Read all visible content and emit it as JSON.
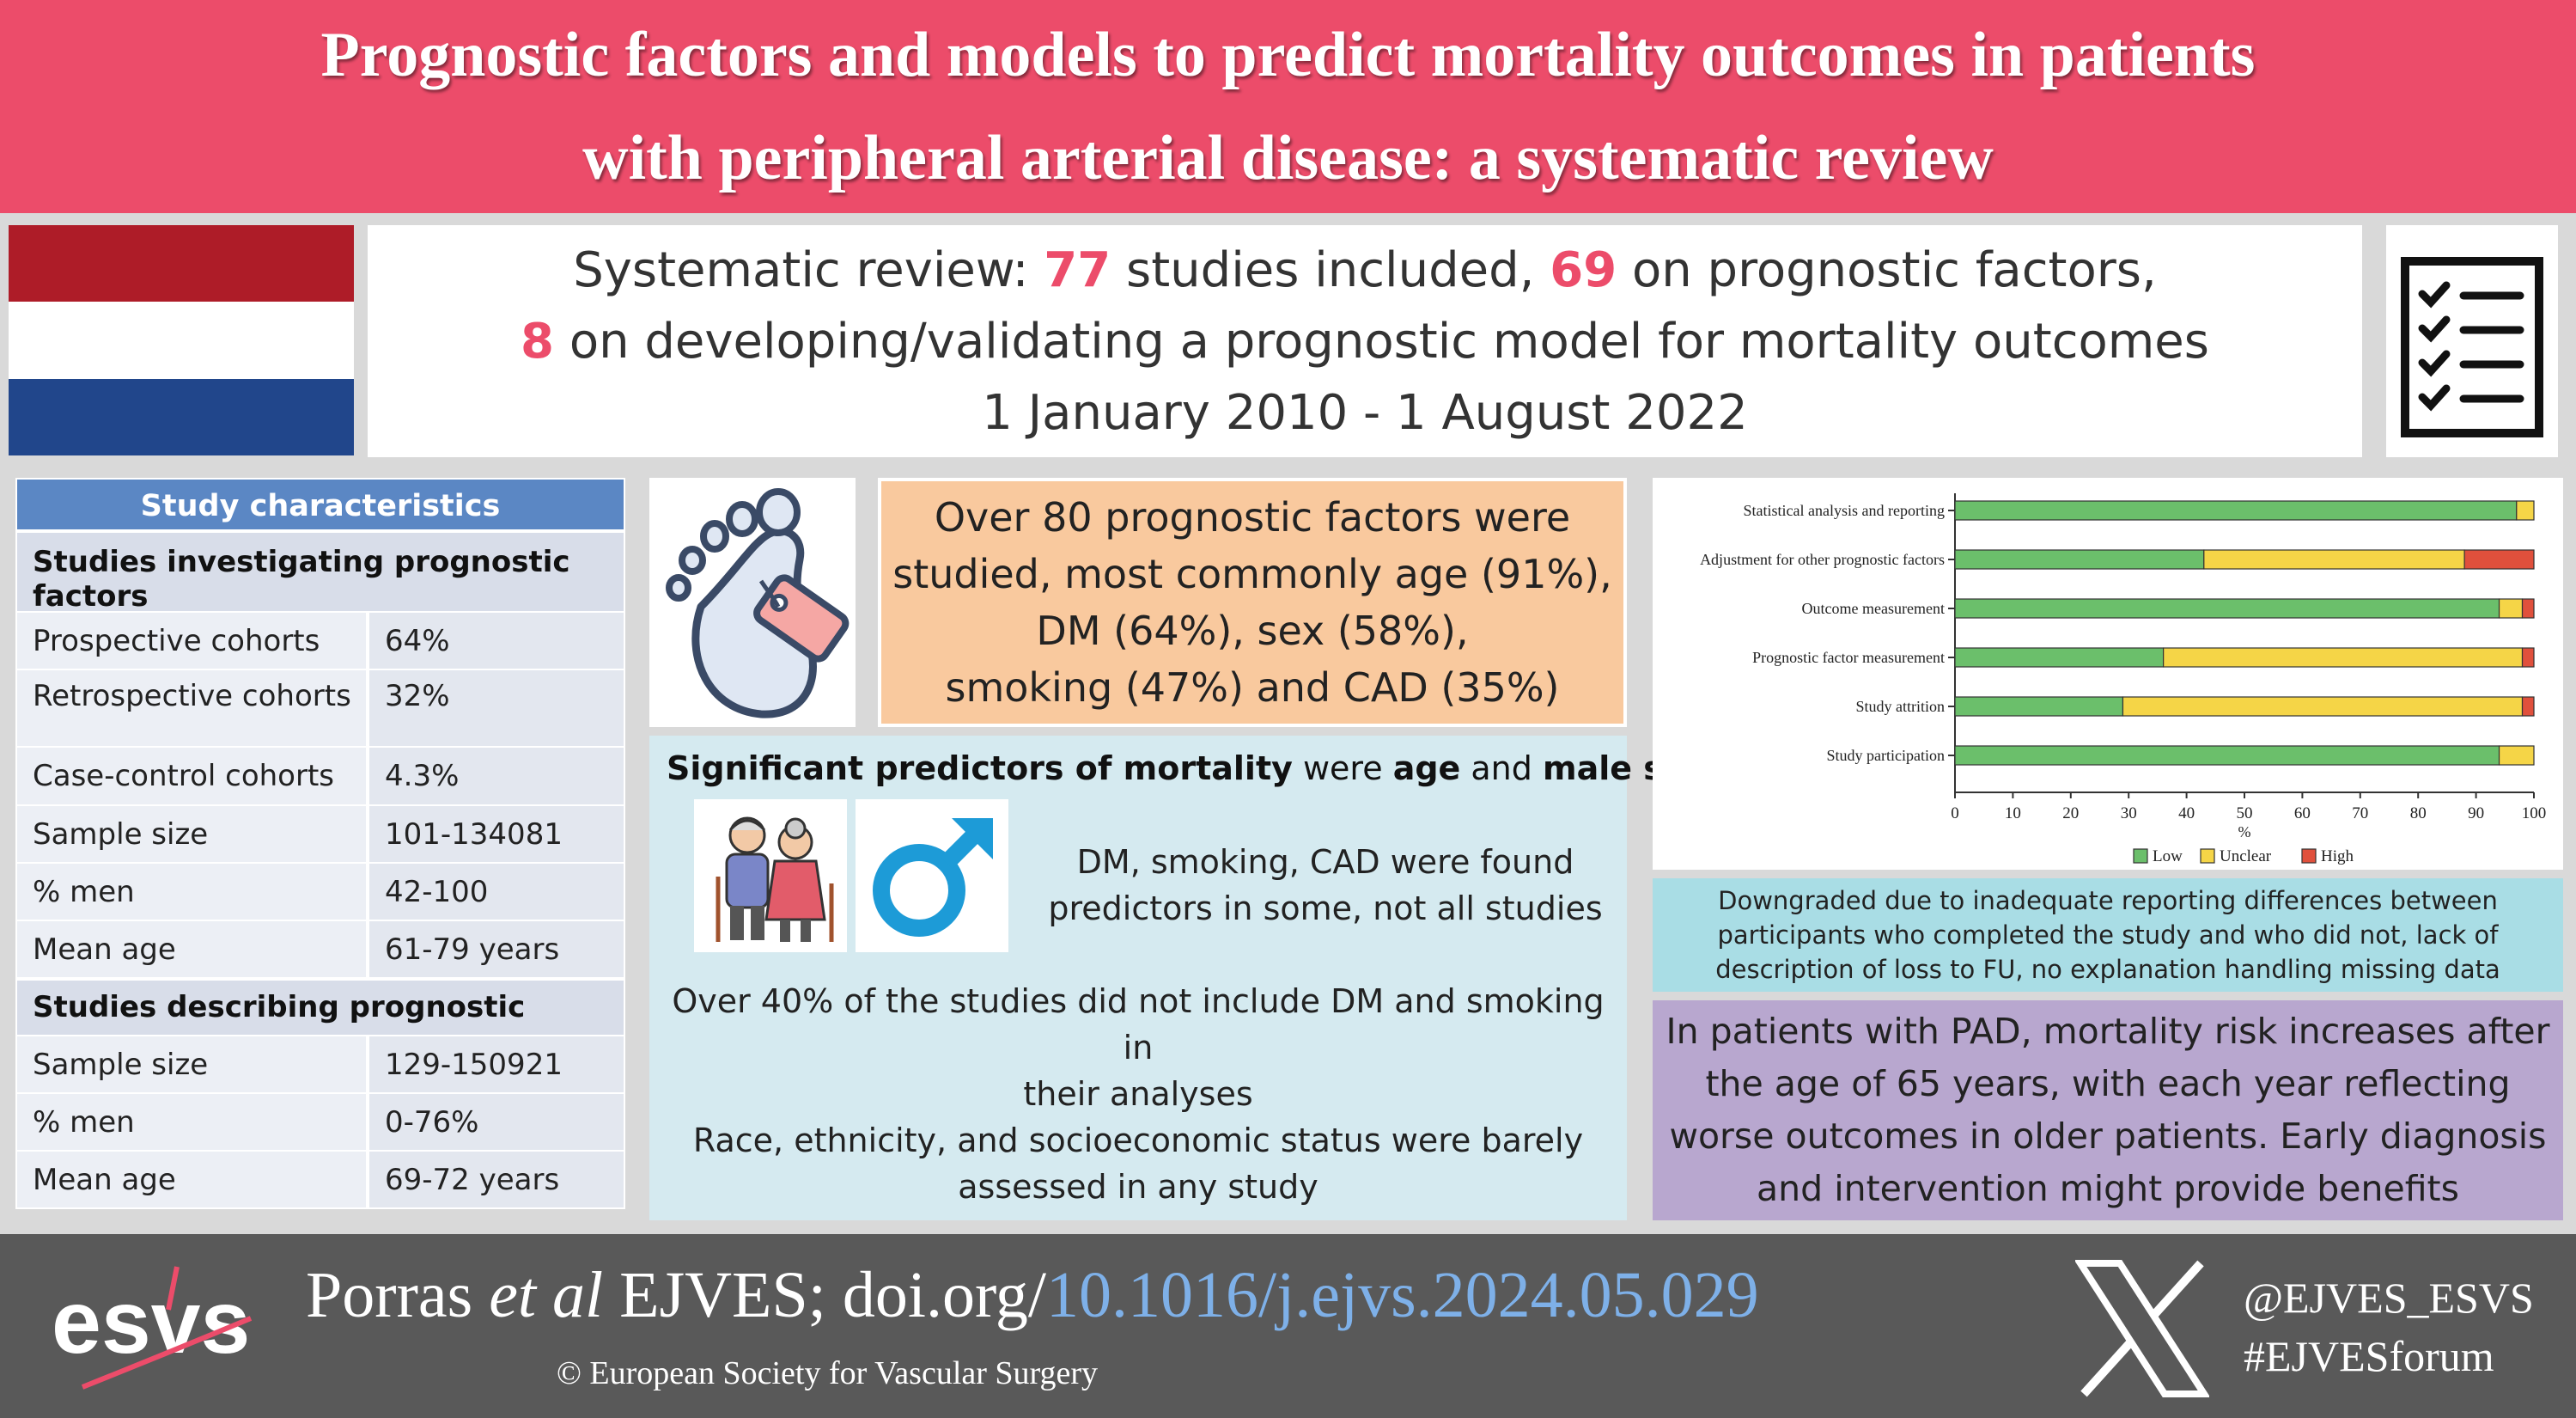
{
  "header": {
    "title_line1": "Prognostic factors and models to predict mortality outcomes in patients",
    "title_line2": "with peripheral arterial disease: a systematic review"
  },
  "flag": {
    "colors": [
      "#ae1c28",
      "#ffffff",
      "#21468b"
    ]
  },
  "summary": {
    "l1_a": "Systematic review: ",
    "l1_n1": "77",
    "l1_b": " studies included, ",
    "l1_n2": "69",
    "l1_c": " on prognostic factors,",
    "l2_n": "8",
    "l2_a": " on developing/validating a prognostic model for mortality outcomes",
    "l3": "1 January 2010 - 1 August 2022",
    "icon": "checklist-icon"
  },
  "characteristics": {
    "title": "Study characteristics",
    "section1": "Studies investigating prognostic factors",
    "rows1": [
      [
        "Prospective cohorts",
        "64%"
      ],
      [
        "Retrospective cohorts",
        "32%"
      ],
      [
        "Case-control cohorts",
        "4.3%"
      ],
      [
        "Sample size",
        "101-134081"
      ],
      [
        "% men",
        "42-100"
      ],
      [
        "Mean age",
        "61-79 years"
      ]
    ],
    "section2": "Studies describing prognostic models",
    "rows2": [
      [
        "Sample size",
        "129-150921"
      ],
      [
        "% men",
        "0-76%"
      ],
      [
        "Mean age",
        "69-72 years"
      ]
    ]
  },
  "factors": {
    "icon": "foot-tag-icon",
    "l1": "Over 80 prognostic factors were",
    "l2": "studied, most commonly age (91%),",
    "l3": "DM (64%), sex (58%),",
    "l4": "smoking (47%) and CAD (35%)"
  },
  "predictors": {
    "h_b1": "Significant predictors of mortality",
    "h_t1": " were ",
    "h_b2": "age",
    "h_t2": " and ",
    "h_b3": "male sex",
    "icon_elderly": "elderly-couple-icon",
    "icon_male": "male-symbol-icon",
    "t1_l1": "DM, smoking, CAD were found",
    "t1_l2": "predictors in some, not all studies",
    "t2_l1": "Over 40% of the studies did not include DM and smoking in",
    "t2_l2": "their analyses",
    "t3_l1": "Race, ethnicity, and socioeconomic status were barely",
    "t3_l2": "assessed in any study"
  },
  "chart_data": {
    "type": "bar",
    "stacked": true,
    "orientation": "horizontal",
    "categories": [
      "Statistical analysis and reporting",
      "Adjustment for other prognostic factors",
      "Outcome measurement",
      "Prognostic factor measurement",
      "Study attrition",
      "Study participation"
    ],
    "series": [
      {
        "name": "Low",
        "color": "#6bbf6b",
        "values": [
          97,
          43,
          94,
          36,
          29,
          94
        ]
      },
      {
        "name": "Unclear",
        "color": "#f5d547",
        "values": [
          3,
          45,
          4,
          62,
          69,
          6
        ]
      },
      {
        "name": "High",
        "color": "#e0503c",
        "values": [
          0,
          12,
          2,
          2,
          2,
          0
        ]
      }
    ],
    "xlabel": "%",
    "xlim": [
      0,
      100
    ],
    "xticks": [
      "0",
      "10",
      "20",
      "30",
      "40",
      "50",
      "60",
      "70",
      "80",
      "90",
      "100"
    ],
    "legend": "bottom"
  },
  "downgrade": {
    "l1": "Downgraded due to inadequate reporting differences between",
    "l2": "participants who completed the study and who did not, lack of",
    "l3": "description of loss to FU, no explanation handling missing data"
  },
  "conclusion": {
    "l1": "In patients with PAD, mortality risk increases after",
    "l2": "the age of 65 years, with each year reflecting",
    "l3": "worse outcomes in older patients. Early diagnosis",
    "l4": "and intervention might provide benefits"
  },
  "footer": {
    "logo_text": "esvs",
    "author": "Porras ",
    "etal": "et al",
    "journal": " EJVES; doi.org/",
    "doi": "10.1016/j.ejvs.2024.05.029",
    "copyright": "© European Society for Vascular Surgery",
    "x_icon": "x-logo-icon",
    "handle": "@EJVES_ESVS",
    "hashtag": "#EJVESforum"
  }
}
